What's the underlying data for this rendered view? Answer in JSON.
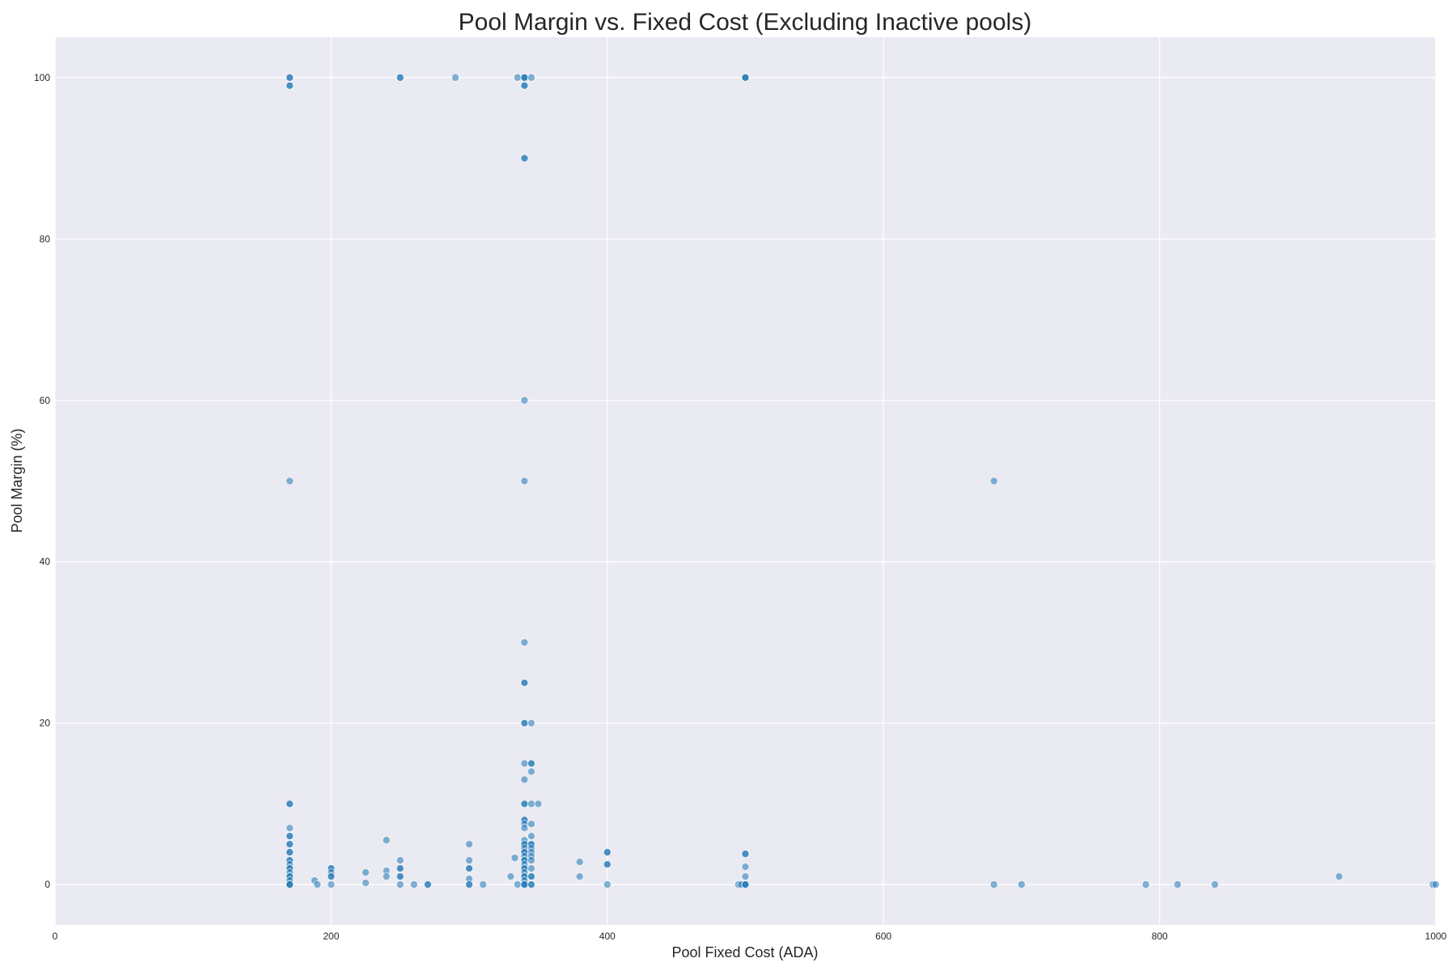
{
  "chart_data": {
    "type": "scatter",
    "title": "Pool Margin vs. Fixed Cost (Excluding Inactive pools)",
    "xlabel": "Pool Fixed Cost (ADA)",
    "ylabel": "Pool Margin (%)",
    "xlim": [
      0,
      1000
    ],
    "ylim": [
      -5,
      105
    ],
    "xticks": [
      0,
      200,
      400,
      600,
      800,
      1000
    ],
    "yticks": [
      0,
      20,
      40,
      60,
      80,
      100
    ],
    "grid": true,
    "background": "#eaeaf2",
    "marker_color": "#1f77b4",
    "marker_alpha": 0.55,
    "points": [
      [
        170,
        100
      ],
      [
        170,
        100
      ],
      [
        170,
        99
      ],
      [
        170,
        99
      ],
      [
        170,
        50
      ],
      [
        170,
        10
      ],
      [
        170,
        10
      ],
      [
        170,
        7
      ],
      [
        170,
        6
      ],
      [
        170,
        6
      ],
      [
        170,
        5
      ],
      [
        170,
        5
      ],
      [
        170,
        4
      ],
      [
        170,
        4
      ],
      [
        170,
        3
      ],
      [
        170,
        3
      ],
      [
        170,
        2.5
      ],
      [
        170,
        2
      ],
      [
        170,
        2
      ],
      [
        170,
        1.5
      ],
      [
        170,
        1
      ],
      [
        170,
        1
      ],
      [
        170,
        0.5
      ],
      [
        170,
        0
      ],
      [
        170,
        0
      ],
      [
        170,
        0
      ],
      [
        188,
        0.5
      ],
      [
        190,
        0
      ],
      [
        200,
        2
      ],
      [
        200,
        2
      ],
      [
        200,
        1.5
      ],
      [
        200,
        1
      ],
      [
        200,
        1
      ],
      [
        200,
        0
      ],
      [
        225,
        1.5
      ],
      [
        225,
        0.2
      ],
      [
        240,
        5.5
      ],
      [
        240,
        1.7
      ],
      [
        240,
        1
      ],
      [
        250,
        100
      ],
      [
        250,
        100
      ],
      [
        250,
        3
      ],
      [
        250,
        2
      ],
      [
        250,
        2
      ],
      [
        250,
        1
      ],
      [
        250,
        1
      ],
      [
        250,
        0
      ],
      [
        260,
        0
      ],
      [
        270,
        0
      ],
      [
        270,
        0
      ],
      [
        290,
        100
      ],
      [
        300,
        5
      ],
      [
        300,
        3
      ],
      [
        300,
        2
      ],
      [
        300,
        2
      ],
      [
        300,
        0.7
      ],
      [
        300,
        0
      ],
      [
        300,
        0
      ],
      [
        310,
        0
      ],
      [
        330,
        1
      ],
      [
        333,
        3.3
      ],
      [
        335,
        0
      ],
      [
        335,
        100
      ],
      [
        340,
        100
      ],
      [
        340,
        100
      ],
      [
        340,
        100
      ],
      [
        340,
        99
      ],
      [
        340,
        99
      ],
      [
        340,
        90
      ],
      [
        340,
        90
      ],
      [
        340,
        60
      ],
      [
        340,
        50
      ],
      [
        340,
        30
      ],
      [
        340,
        25
      ],
      [
        340,
        25
      ],
      [
        340,
        20
      ],
      [
        340,
        20
      ],
      [
        340,
        15
      ],
      [
        340,
        13
      ],
      [
        340,
        10
      ],
      [
        340,
        10
      ],
      [
        340,
        8
      ],
      [
        340,
        8
      ],
      [
        340,
        7.5
      ],
      [
        340,
        7
      ],
      [
        340,
        5.5
      ],
      [
        340,
        5
      ],
      [
        340,
        5
      ],
      [
        340,
        4.5
      ],
      [
        340,
        4
      ],
      [
        340,
        4
      ],
      [
        340,
        3.5
      ],
      [
        340,
        3
      ],
      [
        340,
        3
      ],
      [
        340,
        2.5
      ],
      [
        340,
        2
      ],
      [
        340,
        2
      ],
      [
        340,
        1.5
      ],
      [
        340,
        1
      ],
      [
        340,
        1
      ],
      [
        340,
        0.5
      ],
      [
        340,
        0
      ],
      [
        340,
        0
      ],
      [
        340,
        0
      ],
      [
        345,
        100
      ],
      [
        345,
        20
      ],
      [
        345,
        15
      ],
      [
        345,
        15
      ],
      [
        345,
        14
      ],
      [
        345,
        10
      ],
      [
        345,
        7.5
      ],
      [
        345,
        6
      ],
      [
        345,
        5
      ],
      [
        345,
        5
      ],
      [
        345,
        4.5
      ],
      [
        345,
        4
      ],
      [
        345,
        3.5
      ],
      [
        345,
        3
      ],
      [
        345,
        2
      ],
      [
        345,
        1
      ],
      [
        345,
        1
      ],
      [
        345,
        0
      ],
      [
        345,
        0
      ],
      [
        350,
        10
      ],
      [
        380,
        2.8
      ],
      [
        380,
        1
      ],
      [
        400,
        4
      ],
      [
        400,
        4
      ],
      [
        400,
        2.5
      ],
      [
        400,
        2.5
      ],
      [
        400,
        0
      ],
      [
        495,
        0
      ],
      [
        497,
        0
      ],
      [
        500,
        100
      ],
      [
        500,
        100
      ],
      [
        500,
        100
      ],
      [
        500,
        3.8
      ],
      [
        500,
        3.8
      ],
      [
        500,
        2.2
      ],
      [
        500,
        1
      ],
      [
        500,
        0
      ],
      [
        500,
        0
      ],
      [
        500,
        0
      ],
      [
        680,
        50
      ],
      [
        680,
        0
      ],
      [
        700,
        0
      ],
      [
        790,
        0
      ],
      [
        813,
        0
      ],
      [
        840,
        0
      ],
      [
        930,
        1
      ],
      [
        998,
        0
      ],
      [
        1000,
        0
      ]
    ]
  }
}
